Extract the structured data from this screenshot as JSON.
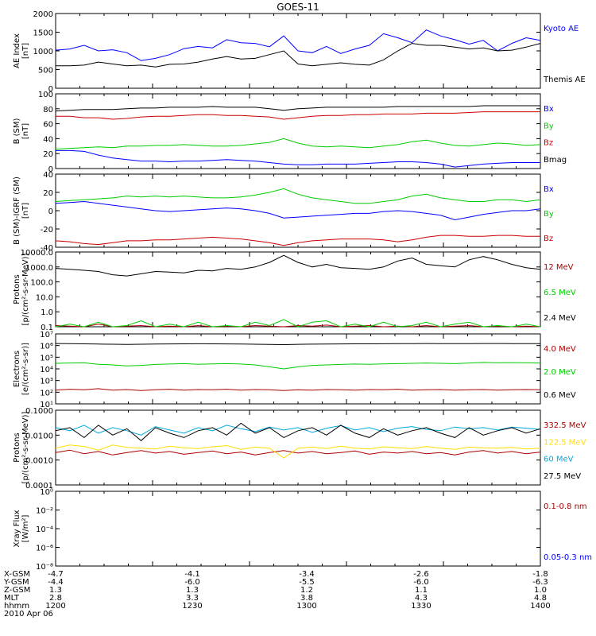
{
  "title": "GOES-11",
  "colors": {
    "black": "#000000",
    "blue": "#0000ff",
    "red": "#cc0000",
    "green": "#00cc00",
    "yellow": "#ffdd00",
    "cyan": "#00aadd",
    "darkred": "#aa0000"
  },
  "chart_data": [
    {
      "type": "line",
      "ylabel": "AE Index\n[nT]",
      "ylim": [
        0,
        2000
      ],
      "yticks": [
        "0",
        "500",
        "1000",
        "1500",
        "2000"
      ],
      "series": [
        {
          "name": "Kyoto AE",
          "color": "blue",
          "values": [
            1020,
            1050,
            1150,
            1000,
            1030,
            950,
            740,
            800,
            900,
            1060,
            1120,
            1080,
            1300,
            1220,
            1200,
            1110,
            1400,
            1000,
            950,
            1120,
            930,
            1050,
            1150,
            1460,
            1350,
            1220,
            1560,
            1400,
            1300,
            1180,
            1280,
            1000,
            1200,
            1350,
            1280
          ]
        },
        {
          "name": "Themis AE",
          "color": "black",
          "values": [
            600,
            600,
            620,
            700,
            650,
            600,
            620,
            570,
            640,
            650,
            700,
            780,
            850,
            780,
            800,
            900,
            1000,
            650,
            600,
            640,
            680,
            640,
            620,
            760,
            1000,
            1200,
            1150,
            1150,
            1100,
            1050,
            1080,
            1000,
            1020,
            1100,
            1200
          ]
        }
      ]
    },
    {
      "type": "line",
      "ylabel": "B (SM)\n[nT]",
      "ylim": [
        0,
        100
      ],
      "yticks": [
        "0",
        "20",
        "40",
        "60",
        "80",
        "100"
      ],
      "series": [
        {
          "name": "Bx",
          "color": "blue",
          "values": [
            24,
            24,
            23,
            18,
            14,
            12,
            10,
            10,
            9,
            10,
            10,
            11,
            12,
            11,
            10,
            8,
            6,
            5,
            5,
            6,
            6,
            6,
            7,
            8,
            9,
            9,
            8,
            6,
            2,
            4,
            6,
            7,
            8,
            8,
            8
          ]
        },
        {
          "name": "By",
          "color": "green",
          "values": [
            26,
            27,
            28,
            29,
            28,
            30,
            30,
            31,
            31,
            32,
            31,
            30,
            30,
            31,
            33,
            35,
            40,
            34,
            30,
            29,
            30,
            29,
            28,
            30,
            32,
            36,
            38,
            34,
            31,
            30,
            32,
            34,
            33,
            31,
            32
          ]
        },
        {
          "name": "Bz",
          "color": "red",
          "values": [
            70,
            70,
            68,
            68,
            66,
            67,
            69,
            70,
            70,
            71,
            72,
            72,
            71,
            71,
            70,
            69,
            66,
            68,
            70,
            71,
            71,
            72,
            72,
            73,
            73,
            73,
            74,
            74,
            74,
            75,
            76,
            76,
            76,
            76,
            76
          ]
        },
        {
          "name": "Bmag",
          "color": "black",
          "values": [
            77,
            78,
            79,
            79,
            79,
            80,
            81,
            81,
            82,
            82,
            82,
            83,
            82,
            82,
            82,
            80,
            78,
            80,
            81,
            82,
            82,
            82,
            82,
            82,
            83,
            83,
            83,
            83,
            83,
            83,
            84,
            84,
            84,
            84,
            84
          ]
        }
      ]
    },
    {
      "type": "line",
      "ylabel": "B (SM)-IGRF (SM)\n[nT]",
      "ylim": [
        -40,
        40
      ],
      "yticks": [
        "-40",
        "-20",
        "0",
        "20",
        "40"
      ],
      "series": [
        {
          "name": "Bx",
          "color": "blue",
          "values": [
            8,
            9,
            10,
            8,
            6,
            4,
            2,
            0,
            -1,
            0,
            1,
            2,
            3,
            2,
            0,
            -3,
            -8,
            -7,
            -6,
            -5,
            -4,
            -3,
            -3,
            -1,
            0,
            -1,
            -3,
            -5,
            -10,
            -7,
            -4,
            -2,
            0,
            0,
            2
          ]
        },
        {
          "name": "By",
          "color": "green",
          "values": [
            10,
            11,
            12,
            13,
            14,
            16,
            15,
            16,
            15,
            16,
            15,
            14,
            14,
            15,
            17,
            20,
            24,
            18,
            14,
            12,
            10,
            8,
            8,
            10,
            12,
            16,
            18,
            14,
            12,
            10,
            10,
            12,
            12,
            10,
            12
          ]
        },
        {
          "name": "Bz",
          "color": "red",
          "values": [
            -33,
            -34,
            -36,
            -37,
            -35,
            -33,
            -33,
            -32,
            -32,
            -31,
            -30,
            -29,
            -30,
            -31,
            -33,
            -35,
            -38,
            -35,
            -33,
            -32,
            -31,
            -31,
            -31,
            -32,
            -34,
            -32,
            -29,
            -27,
            -27,
            -28,
            -28,
            -27,
            -27,
            -28,
            -28
          ]
        }
      ]
    },
    {
      "type": "line",
      "ylabel": "Protons\n[p/(cm²-s-sr-MeV)]",
      "yscale": "log",
      "ylim": [
        0.1,
        10000
      ],
      "yticks": [
        "0.1",
        "1.0",
        "10.0",
        "100.0",
        "1000.0",
        "10000.0"
      ],
      "series": [
        {
          "name": "12 MeV",
          "color": "darkred",
          "values": [
            0.12,
            0.11,
            0.1,
            0.15,
            0.1,
            0.11,
            0.12,
            0.1,
            0.11,
            0.1,
            0.12,
            0.1,
            0.11,
            0.1,
            0.12,
            0.11,
            0.1,
            0.12,
            0.11,
            0.13,
            0.1,
            0.11,
            0.12,
            0.1,
            0.11,
            0.1,
            0.12,
            0.1,
            0.11,
            0.12,
            0.1,
            0.11,
            0.1,
            0.11,
            0.1
          ]
        },
        {
          "name": "6.5 MeV",
          "color": "green",
          "values": [
            0.1,
            0.15,
            0.1,
            0.2,
            0.1,
            0.12,
            0.25,
            0.1,
            0.15,
            0.1,
            0.2,
            0.1,
            0.12,
            0.1,
            0.2,
            0.12,
            0.3,
            0.1,
            0.2,
            0.25,
            0.1,
            0.15,
            0.1,
            0.2,
            0.1,
            0.12,
            0.2,
            0.1,
            0.15,
            0.2,
            0.1,
            0.12,
            0.1,
            0.15,
            0.1
          ]
        },
        {
          "name": "2.4 MeV",
          "color": "black",
          "values": [
            800,
            700,
            600,
            500,
            300,
            250,
            350,
            500,
            450,
            400,
            600,
            550,
            800,
            700,
            1000,
            2000,
            6000,
            2000,
            1000,
            1500,
            900,
            800,
            700,
            1000,
            2500,
            4000,
            1500,
            1200,
            1000,
            3000,
            5000,
            3000,
            1500,
            900,
            700
          ]
        }
      ]
    },
    {
      "type": "line",
      "ylabel": "Electrons\n[e/(cm²-s-sr)]",
      "yscale": "log",
      "ylim": [
        10,
        10000000
      ],
      "yticks": [
        "10¹",
        "10²",
        "10³",
        "10⁴",
        "10⁵",
        "10⁶",
        "10⁷"
      ],
      "series": [
        {
          "name": "4.0 MeV",
          "color": "darkred",
          "values": [
            150,
            180,
            160,
            200,
            150,
            170,
            140,
            160,
            180,
            150,
            170,
            160,
            180,
            150,
            170,
            160,
            140,
            160,
            150,
            170,
            160,
            150,
            170,
            160,
            180,
            150,
            160,
            170,
            150,
            160,
            170,
            150,
            160,
            170,
            160
          ]
        },
        {
          "name": "2.0 MeV",
          "color": "green",
          "values": [
            30000,
            32000,
            33000,
            25000,
            22000,
            18000,
            20000,
            24000,
            26000,
            28000,
            25000,
            27000,
            28000,
            26000,
            22000,
            15000,
            10000,
            15000,
            20000,
            22000,
            24000,
            26000,
            25000,
            27000,
            28000,
            30000,
            32000,
            30000,
            28000,
            32000,
            35000,
            33000,
            34000,
            33000,
            32000
          ]
        },
        {
          "name": "0.6 MeV",
          "color": "black",
          "values": [
            1500000,
            1450000,
            1400000,
            1350000,
            1300000,
            1250000,
            1300000,
            1350000,
            1380000,
            1400000,
            1420000,
            1400000,
            1380000,
            1350000,
            1300000,
            1250000,
            1200000,
            1280000,
            1320000,
            1350000,
            1380000,
            1400000,
            1400000,
            1420000,
            1450000,
            1480000,
            1500000,
            1480000,
            1450000,
            1480000,
            1500000,
            1500000,
            1480000,
            1470000,
            1480000
          ]
        }
      ]
    },
    {
      "type": "line",
      "ylabel": "Protons\n[p/(cm²-s-sr-MeV)]",
      "yscale": "log",
      "ylim": [
        0.0001,
        0.1
      ],
      "yticks": [
        "0.0001",
        "0.0010",
        "0.0100",
        "0.1000"
      ],
      "series": [
        {
          "name": "332.5 MeV",
          "color": "darkred",
          "values": [
            0.002,
            0.0025,
            0.0018,
            0.0022,
            0.0016,
            0.002,
            0.0024,
            0.0019,
            0.0022,
            0.0017,
            0.002,
            0.0023,
            0.0018,
            0.0021,
            0.0016,
            0.002,
            0.0024,
            0.0019,
            0.0022,
            0.0018,
            0.002,
            0.0023,
            0.0017,
            0.0021,
            0.0019,
            0.0022,
            0.0018,
            0.002,
            0.0016,
            0.0021,
            0.0024,
            0.0019,
            0.0022,
            0.0018,
            0.0021
          ]
        },
        {
          "name": "122.5 MeV",
          "color": "yellow",
          "values": [
            0.003,
            0.004,
            0.0035,
            0.0025,
            0.004,
            0.0032,
            0.003,
            0.0028,
            0.0036,
            0.0031,
            0.0029,
            0.0034,
            0.0038,
            0.0027,
            0.0033,
            0.003,
            0.0012,
            0.003,
            0.0033,
            0.0029,
            0.0036,
            0.003,
            0.0028,
            0.0034,
            0.0031,
            0.0029,
            0.0035,
            0.003,
            0.0027,
            0.0033,
            0.0031,
            0.003,
            0.0032,
            0.0028,
            0.003
          ]
        },
        {
          "name": "60 MeV",
          "color": "cyan",
          "values": [
            0.02,
            0.015,
            0.025,
            0.012,
            0.02,
            0.015,
            0.01,
            0.022,
            0.016,
            0.012,
            0.02,
            0.015,
            0.025,
            0.018,
            0.014,
            0.021,
            0.016,
            0.02,
            0.013,
            0.019,
            0.024,
            0.016,
            0.02,
            0.014,
            0.019,
            0.022,
            0.017,
            0.015,
            0.021,
            0.018,
            0.02,
            0.016,
            0.021,
            0.019,
            0.017
          ]
        },
        {
          "name": "27.5 MeV",
          "color": "black",
          "values": [
            0.015,
            0.02,
            0.008,
            0.025,
            0.01,
            0.018,
            0.006,
            0.02,
            0.012,
            0.008,
            0.015,
            0.02,
            0.01,
            0.03,
            0.012,
            0.02,
            0.008,
            0.015,
            0.02,
            0.01,
            0.025,
            0.012,
            0.008,
            0.018,
            0.01,
            0.015,
            0.02,
            0.012,
            0.008,
            0.02,
            0.01,
            0.015,
            0.02,
            0.012,
            0.018
          ]
        }
      ]
    },
    {
      "type": "line",
      "ylabel": "Xray Flux\n[W/m²]",
      "yscale": "log",
      "ylim": [
        1e-08,
        1
      ],
      "yticks": [
        "10⁻⁸",
        "10⁻⁶",
        "10⁻⁴",
        "10⁻²",
        "10⁰"
      ],
      "series": [
        {
          "name": "0.1-0.8 nm",
          "color": "darkred",
          "values": []
        },
        {
          "name": "0.05-0.3 nm",
          "color": "blue",
          "values": []
        }
      ]
    }
  ],
  "footer": {
    "rows": [
      {
        "label": "X-GSM",
        "values": [
          "-4.7",
          "-4.1",
          "-3.4",
          "-2.6",
          "-1.8"
        ]
      },
      {
        "label": "Y-GSM",
        "values": [
          "-4.4",
          "-6.0",
          "-5.5",
          "-6.0",
          "-6.3"
        ]
      },
      {
        "label": "Z-GSM",
        "values": [
          "1.3",
          "1.3",
          "1.2",
          "1.1",
          "1.0"
        ]
      },
      {
        "label": "MLT",
        "values": [
          "2.8",
          "3.3",
          "3.8",
          "4.3",
          "4.8"
        ]
      },
      {
        "label": "hhmm",
        "values": [
          "1200",
          "1230",
          "1300",
          "1330",
          "1400"
        ]
      }
    ],
    "date": "2010 Apr 06"
  }
}
